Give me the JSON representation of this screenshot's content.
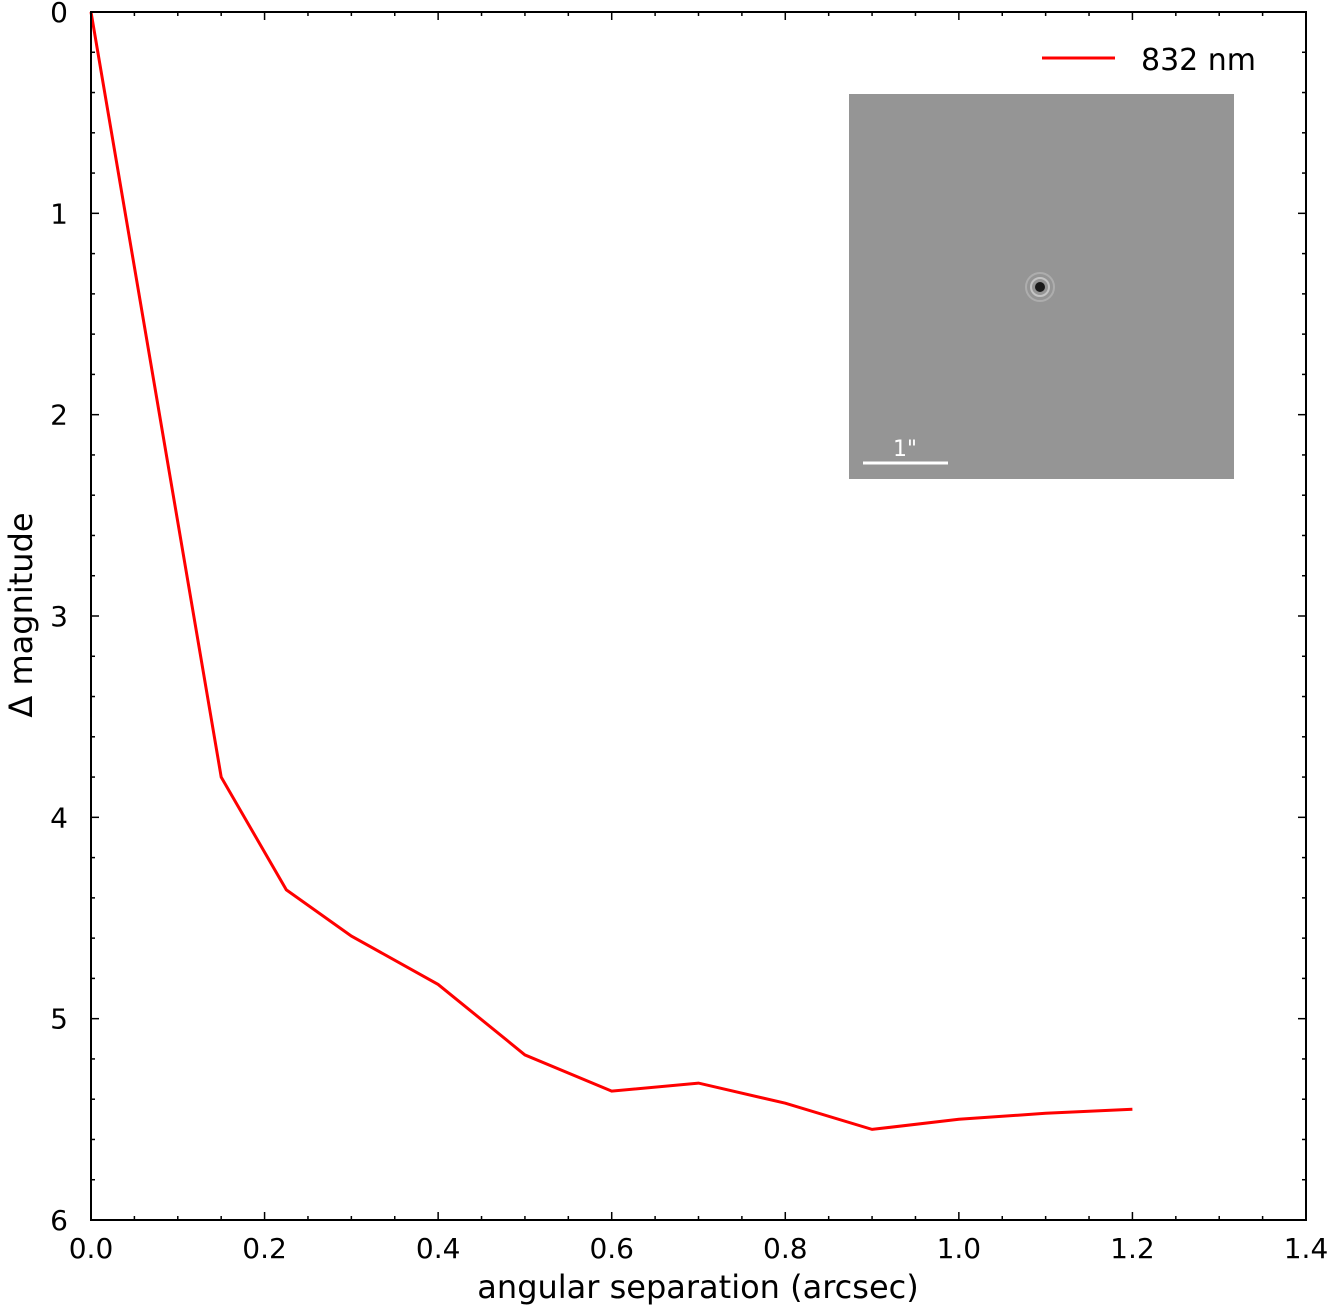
{
  "chart_data": {
    "type": "line",
    "title": "",
    "xlabel": "angular separation (arcsec)",
    "ylabel": "Δ magnitude",
    "xlim": [
      0.0,
      1.4
    ],
    "ylim": [
      6,
      0
    ],
    "y_inverted": true,
    "xticks": [
      "0.0",
      "0.2",
      "0.4",
      "0.6",
      "0.8",
      "1.0",
      "1.2",
      "1.4"
    ],
    "yticks": [
      "0",
      "1",
      "2",
      "3",
      "4",
      "5",
      "6"
    ],
    "grid": false,
    "legend_position": "upper right",
    "series": [
      {
        "name": "832 nm",
        "color": "#ff0000",
        "x": [
          0.0,
          0.15,
          0.225,
          0.3,
          0.4,
          0.5,
          0.6,
          0.7,
          0.8,
          0.9,
          1.0,
          1.1,
          1.2
        ],
        "values": [
          0.0,
          3.8,
          4.36,
          4.59,
          4.83,
          5.18,
          5.36,
          5.32,
          5.42,
          5.55,
          5.5,
          5.47,
          5.45
        ]
      }
    ],
    "inset": {
      "description": "speckle reconstructed image, gray background with central dark star",
      "scale_bar_label": "1\""
    }
  },
  "legend": {
    "label": "832 nm",
    "color": "#ff0000"
  },
  "inset": {
    "scale_bar_label": "1\"",
    "background": "#959595"
  },
  "axes": {
    "xlabel": "angular separation (arcsec)",
    "ylabel": "Δ magnitude"
  }
}
